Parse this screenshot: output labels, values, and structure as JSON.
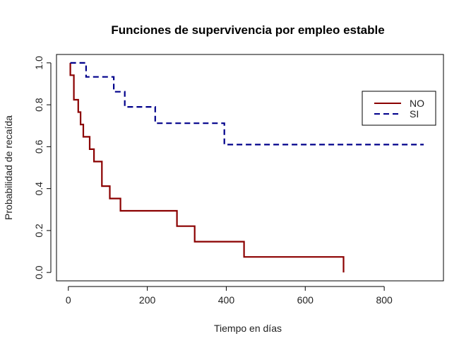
{
  "chart_data": {
    "type": "line",
    "subtype": "step",
    "title": "Funciones de supervivencia por empleo estable",
    "xlabel": "Tiempo en días",
    "ylabel": "Probabilidad de recaída",
    "xlim": [
      -30,
      950
    ],
    "ylim": [
      -0.04,
      1.04
    ],
    "xticks": [
      0,
      200,
      400,
      600,
      800
    ],
    "yticks": [
      0.0,
      0.2,
      0.4,
      0.6,
      0.8,
      1.0
    ],
    "xtick_labels": [
      "0",
      "200",
      "400",
      "600",
      "800"
    ],
    "ytick_labels": [
      "0.0",
      "0.2",
      "0.4",
      "0.6",
      "0.8",
      "1.0"
    ],
    "grid": false,
    "legend_position": "top-right",
    "series": [
      {
        "name": "NO",
        "color": "#8b0000",
        "dash": "solid",
        "x": [
          5,
          5,
          14,
          14,
          25,
          25,
          31,
          31,
          38,
          38,
          54,
          54,
          65,
          65,
          85,
          85,
          105,
          105,
          132,
          132,
          275,
          275,
          320,
          320,
          445,
          445,
          697,
          697
        ],
        "y": [
          1.0,
          0.941,
          0.941,
          0.824,
          0.824,
          0.765,
          0.765,
          0.706,
          0.706,
          0.647,
          0.647,
          0.588,
          0.588,
          0.529,
          0.529,
          0.412,
          0.412,
          0.353,
          0.353,
          0.294,
          0.294,
          0.221,
          0.221,
          0.147,
          0.147,
          0.074,
          0.074,
          0.0
        ]
      },
      {
        "name": "SI",
        "color": "#00008b",
        "dash": "dashed",
        "x": [
          5,
          45,
          45,
          115,
          115,
          143,
          143,
          220,
          220,
          395,
          395,
          900
        ],
        "y": [
          1.0,
          1.0,
          0.933,
          0.933,
          0.862,
          0.862,
          0.79,
          0.79,
          0.712,
          0.712,
          0.61,
          0.61
        ]
      }
    ]
  }
}
